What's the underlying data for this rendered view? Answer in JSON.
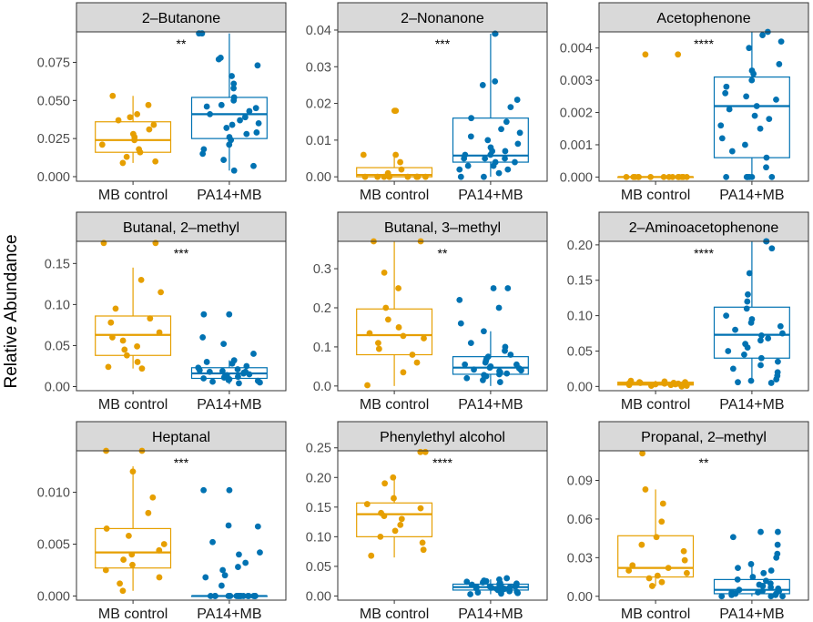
{
  "figure": {
    "shared_ylabel": "Relative Abundance",
    "colors": {
      "mb_control": "#E69F00",
      "pa14_mb": "#0072B2",
      "strip_fill": "#D9D9D9",
      "axis": "#333333"
    }
  },
  "chart_data": [
    {
      "type": "box",
      "title": "2–Butanone",
      "categories": [
        "MB control",
        "PA14+MB"
      ],
      "significance": "**",
      "yticks": [
        0.0,
        0.025,
        0.05,
        0.075
      ],
      "ytick_labels": [
        "0.000",
        "0.025",
        "0.050",
        "0.075"
      ],
      "ylim": [
        -0.003,
        0.095
      ],
      "boxes": [
        {
          "q1": 0.016,
          "median": 0.024,
          "q3": 0.036,
          "whisker_low": 0.009,
          "whisker_high": 0.053
        },
        {
          "q1": 0.025,
          "median": 0.041,
          "q3": 0.052,
          "whisker_low": 0.004,
          "whisker_high": 0.094
        }
      ],
      "points": [
        [
          0.053,
          0.047,
          0.041,
          0.039,
          0.037,
          0.034,
          0.031,
          0.028,
          0.026,
          0.024,
          0.021,
          0.018,
          0.016,
          0.013,
          0.01,
          0.009
        ],
        [
          0.094,
          0.094,
          0.078,
          0.077,
          0.073,
          0.066,
          0.061,
          0.058,
          0.052,
          0.05,
          0.047,
          0.045,
          0.043,
          0.041,
          0.039,
          0.037,
          0.035,
          0.032,
          0.029,
          0.026,
          0.024,
          0.021,
          0.018,
          0.015,
          0.011,
          0.007,
          0.004,
          0.046,
          0.034,
          0.028
        ]
      ]
    },
    {
      "type": "box",
      "title": "2–Nonanone",
      "categories": [
        "MB control",
        "PA14+MB"
      ],
      "significance": "***",
      "yticks": [
        0.0,
        0.01,
        0.02,
        0.03,
        0.04
      ],
      "ytick_labels": [
        "0.00",
        "0.01",
        "0.02",
        "0.03",
        "0.04"
      ],
      "ylim": [
        -0.0012,
        0.0395
      ],
      "boxes": [
        {
          "q1": 0.0,
          "median": 0.0005,
          "q3": 0.0025,
          "whisker_low": 0.0,
          "whisker_high": 0.006
        },
        {
          "q1": 0.004,
          "median": 0.0058,
          "q3": 0.016,
          "whisker_low": 0.0,
          "whisker_high": 0.039
        }
      ],
      "points": [
        [
          0.018,
          0.018,
          0.006,
          0.006,
          0.004,
          0.002,
          0.001,
          0.0,
          0.0,
          0.0,
          0.0,
          0.0,
          0.0,
          0.0,
          0.0,
          0.0
        ],
        [
          0.039,
          0.039,
          0.026,
          0.025,
          0.021,
          0.019,
          0.016,
          0.015,
          0.013,
          0.012,
          0.01,
          0.009,
          0.008,
          0.007,
          0.006,
          0.006,
          0.005,
          0.005,
          0.004,
          0.004,
          0.003,
          0.003,
          0.002,
          0.002,
          0.001,
          0.0,
          0.0,
          0.011,
          0.007,
          0.005
        ]
      ]
    },
    {
      "type": "box",
      "title": "Acetophenone",
      "categories": [
        "MB control",
        "PA14+MB"
      ],
      "significance": "****",
      "yticks": [
        0.0,
        0.001,
        0.002,
        0.003,
        0.004
      ],
      "ytick_labels": [
        "0.000",
        "0.001",
        "0.002",
        "0.003",
        "0.004"
      ],
      "ylim": [
        -0.00013,
        0.0045
      ],
      "boxes": [
        {
          "q1": 0.0,
          "median": 0.0,
          "q3": 0.0,
          "whisker_low": 0.0,
          "whisker_high": 0.0
        },
        {
          "q1": 0.0006,
          "median": 0.0022,
          "q3": 0.0031,
          "whisker_low": 0.0,
          "whisker_high": 0.0045
        }
      ],
      "points": [
        [
          0.0038,
          0.0038,
          0.0,
          0.0,
          0.0,
          0.0,
          0.0,
          0.0,
          0.0,
          0.0,
          0.0,
          0.0,
          0.0,
          0.0,
          0.0,
          0.0
        ],
        [
          0.0045,
          0.0044,
          0.0042,
          0.004,
          0.0035,
          0.0033,
          0.0032,
          0.003,
          0.0028,
          0.0026,
          0.0025,
          0.0024,
          0.0022,
          0.0021,
          0.0019,
          0.0018,
          0.0016,
          0.0015,
          0.0012,
          0.001,
          0.0008,
          0.0006,
          0.0003,
          0.0,
          0.0,
          0.0,
          0.0,
          0.0,
          0.0,
          0.0
        ]
      ]
    },
    {
      "type": "box",
      "title": "Butanal, 2–methyl",
      "categories": [
        "MB control",
        "PA14+MB"
      ],
      "significance": "***",
      "yticks": [
        0.0,
        0.05,
        0.1,
        0.15
      ],
      "ytick_labels": [
        "0.00",
        "0.05",
        "0.10",
        "0.15"
      ],
      "ylim": [
        -0.005,
        0.177
      ],
      "boxes": [
        {
          "q1": 0.038,
          "median": 0.063,
          "q3": 0.086,
          "whisker_low": 0.022,
          "whisker_high": 0.145
        },
        {
          "q1": 0.01,
          "median": 0.016,
          "q3": 0.023,
          "whisker_low": 0.003,
          "whisker_high": 0.032
        }
      ],
      "points": [
        [
          0.175,
          0.175,
          0.13,
          0.115,
          0.095,
          0.083,
          0.078,
          0.066,
          0.06,
          0.056,
          0.049,
          0.045,
          0.038,
          0.03,
          0.024,
          0.022
        ],
        [
          0.088,
          0.088,
          0.06,
          0.052,
          0.04,
          0.032,
          0.03,
          0.028,
          0.025,
          0.023,
          0.021,
          0.02,
          0.019,
          0.018,
          0.017,
          0.016,
          0.015,
          0.014,
          0.013,
          0.012,
          0.011,
          0.01,
          0.009,
          0.008,
          0.007,
          0.006,
          0.005,
          0.004,
          0.018,
          0.012
        ]
      ]
    },
    {
      "type": "box",
      "title": "Butanal, 3–methyl",
      "categories": [
        "MB control",
        "PA14+MB"
      ],
      "significance": "**",
      "yticks": [
        0.0,
        0.1,
        0.2,
        0.3
      ],
      "ytick_labels": [
        "0.0",
        "0.1",
        "0.2",
        "0.3"
      ],
      "ylim": [
        -0.012,
        0.37
      ],
      "boxes": [
        {
          "q1": 0.08,
          "median": 0.13,
          "q3": 0.197,
          "whisker_low": 0.0,
          "whisker_high": 0.37
        },
        {
          "q1": 0.03,
          "median": 0.047,
          "q3": 0.075,
          "whisker_low": 0.0,
          "whisker_high": 0.14
        }
      ],
      "points": [
        [
          0.37,
          0.37,
          0.29,
          0.25,
          0.2,
          0.17,
          0.15,
          0.135,
          0.128,
          0.122,
          0.11,
          0.095,
          0.08,
          0.06,
          0.035,
          0.002
        ],
        [
          0.25,
          0.25,
          0.22,
          0.2,
          0.16,
          0.14,
          0.11,
          0.1,
          0.09,
          0.08,
          0.075,
          0.07,
          0.065,
          0.06,
          0.055,
          0.05,
          0.047,
          0.045,
          0.042,
          0.04,
          0.035,
          0.032,
          0.03,
          0.028,
          0.025,
          0.02,
          0.015,
          0.01,
          0.055,
          0.038
        ]
      ]
    },
    {
      "type": "box",
      "title": "2–Aminoacetophenone",
      "categories": [
        "MB control",
        "PA14+MB"
      ],
      "significance": "****",
      "yticks": [
        0.0,
        0.05,
        0.1,
        0.15,
        0.2
      ],
      "ytick_labels": [
        "0.00",
        "0.05",
        "0.10",
        "0.15",
        "0.20"
      ],
      "ylim": [
        -0.006,
        0.205
      ],
      "boxes": [
        {
          "q1": 0.002,
          "median": 0.004,
          "q3": 0.006,
          "whisker_low": 0.0,
          "whisker_high": 0.008
        },
        {
          "q1": 0.04,
          "median": 0.073,
          "q3": 0.112,
          "whisker_low": 0.005,
          "whisker_high": 0.205
        }
      ],
      "points": [
        [
          0.008,
          0.007,
          0.006,
          0.006,
          0.005,
          0.005,
          0.004,
          0.004,
          0.004,
          0.003,
          0.003,
          0.002,
          0.002,
          0.001,
          0.001,
          0.0
        ],
        [
          0.205,
          0.205,
          0.195,
          0.16,
          0.13,
          0.12,
          0.11,
          0.1,
          0.095,
          0.09,
          0.085,
          0.08,
          0.075,
          0.072,
          0.068,
          0.065,
          0.06,
          0.055,
          0.05,
          0.045,
          0.04,
          0.035,
          0.03,
          0.025,
          0.02,
          0.015,
          0.01,
          0.008,
          0.006,
          0.005
        ]
      ]
    },
    {
      "type": "box",
      "title": "Heptanal",
      "categories": [
        "MB control",
        "PA14+MB"
      ],
      "significance": "***",
      "yticks": [
        0.0,
        0.005,
        0.01
      ],
      "ytick_labels": [
        "0.000",
        "0.005",
        "0.010"
      ],
      "ylim": [
        -0.0004,
        0.014
      ],
      "boxes": [
        {
          "q1": 0.0027,
          "median": 0.0042,
          "q3": 0.0065,
          "whisker_low": 0.0005,
          "whisker_high": 0.0125
        },
        {
          "q1": 0.0,
          "median": 0.0,
          "q3": 0.0,
          "whisker_low": 0.0,
          "whisker_high": 0.0
        }
      ],
      "points": [
        [
          0.014,
          0.014,
          0.012,
          0.0095,
          0.008,
          0.0065,
          0.0058,
          0.005,
          0.0044,
          0.004,
          0.0035,
          0.003,
          0.0025,
          0.0018,
          0.0012,
          0.0005
        ],
        [
          0.0102,
          0.0102,
          0.0068,
          0.0067,
          0.0052,
          0.0042,
          0.004,
          0.0032,
          0.0028,
          0.0025,
          0.002,
          0.0018,
          0.001,
          0.0,
          0.0,
          0.0,
          0.0,
          0.0,
          0.0,
          0.0,
          0.0,
          0.0,
          0.0,
          0.0,
          0.0,
          0.0,
          0.0,
          0.0,
          0.0,
          0.0
        ]
      ]
    },
    {
      "type": "box",
      "title": "Phenylethyl alcohol",
      "categories": [
        "MB control",
        "PA14+MB"
      ],
      "significance": "****",
      "yticks": [
        0.0,
        0.05,
        0.1,
        0.15,
        0.2,
        0.25
      ],
      "ytick_labels": [
        "0.00",
        "0.05",
        "0.10",
        "0.15",
        "0.20",
        "0.25"
      ],
      "ylim": [
        -0.007,
        0.245
      ],
      "boxes": [
        {
          "q1": 0.1,
          "median": 0.138,
          "q3": 0.157,
          "whisker_low": 0.065,
          "whisker_high": 0.2
        },
        {
          "q1": 0.01,
          "median": 0.015,
          "q3": 0.02,
          "whisker_low": 0.003,
          "whisker_high": 0.028
        }
      ],
      "points": [
        [
          0.243,
          0.243,
          0.2,
          0.19,
          0.165,
          0.155,
          0.148,
          0.14,
          0.135,
          0.13,
          0.12,
          0.11,
          0.1,
          0.09,
          0.078,
          0.068
        ],
        [
          0.03,
          0.028,
          0.026,
          0.025,
          0.024,
          0.023,
          0.022,
          0.021,
          0.02,
          0.019,
          0.018,
          0.017,
          0.016,
          0.016,
          0.015,
          0.015,
          0.014,
          0.014,
          0.013,
          0.012,
          0.011,
          0.01,
          0.009,
          0.008,
          0.007,
          0.006,
          0.005,
          0.004,
          0.003,
          0.012
        ]
      ]
    },
    {
      "type": "box",
      "title": "Propanal, 2–methyl",
      "categories": [
        "MB control",
        "PA14+MB"
      ],
      "significance": "**",
      "yticks": [
        0.0,
        0.03,
        0.06,
        0.09
      ],
      "ytick_labels": [
        "0.00",
        "0.03",
        "0.06",
        "0.09"
      ],
      "ylim": [
        -0.003,
        0.113
      ],
      "boxes": [
        {
          "q1": 0.015,
          "median": 0.022,
          "q3": 0.047,
          "whisker_low": 0.008,
          "whisker_high": 0.083
        },
        {
          "q1": 0.002,
          "median": 0.005,
          "q3": 0.013,
          "whisker_low": 0.0,
          "whisker_high": 0.025
        }
      ],
      "points": [
        [
          0.111,
          0.083,
          0.072,
          0.058,
          0.046,
          0.04,
          0.035,
          0.028,
          0.024,
          0.022,
          0.02,
          0.018,
          0.016,
          0.014,
          0.011,
          0.008
        ],
        [
          0.05,
          0.05,
          0.046,
          0.04,
          0.033,
          0.03,
          0.025,
          0.022,
          0.02,
          0.018,
          0.015,
          0.013,
          0.012,
          0.01,
          0.009,
          0.008,
          0.007,
          0.006,
          0.005,
          0.004,
          0.004,
          0.003,
          0.003,
          0.002,
          0.002,
          0.001,
          0.001,
          0.0,
          0.0,
          0.0
        ]
      ]
    }
  ]
}
